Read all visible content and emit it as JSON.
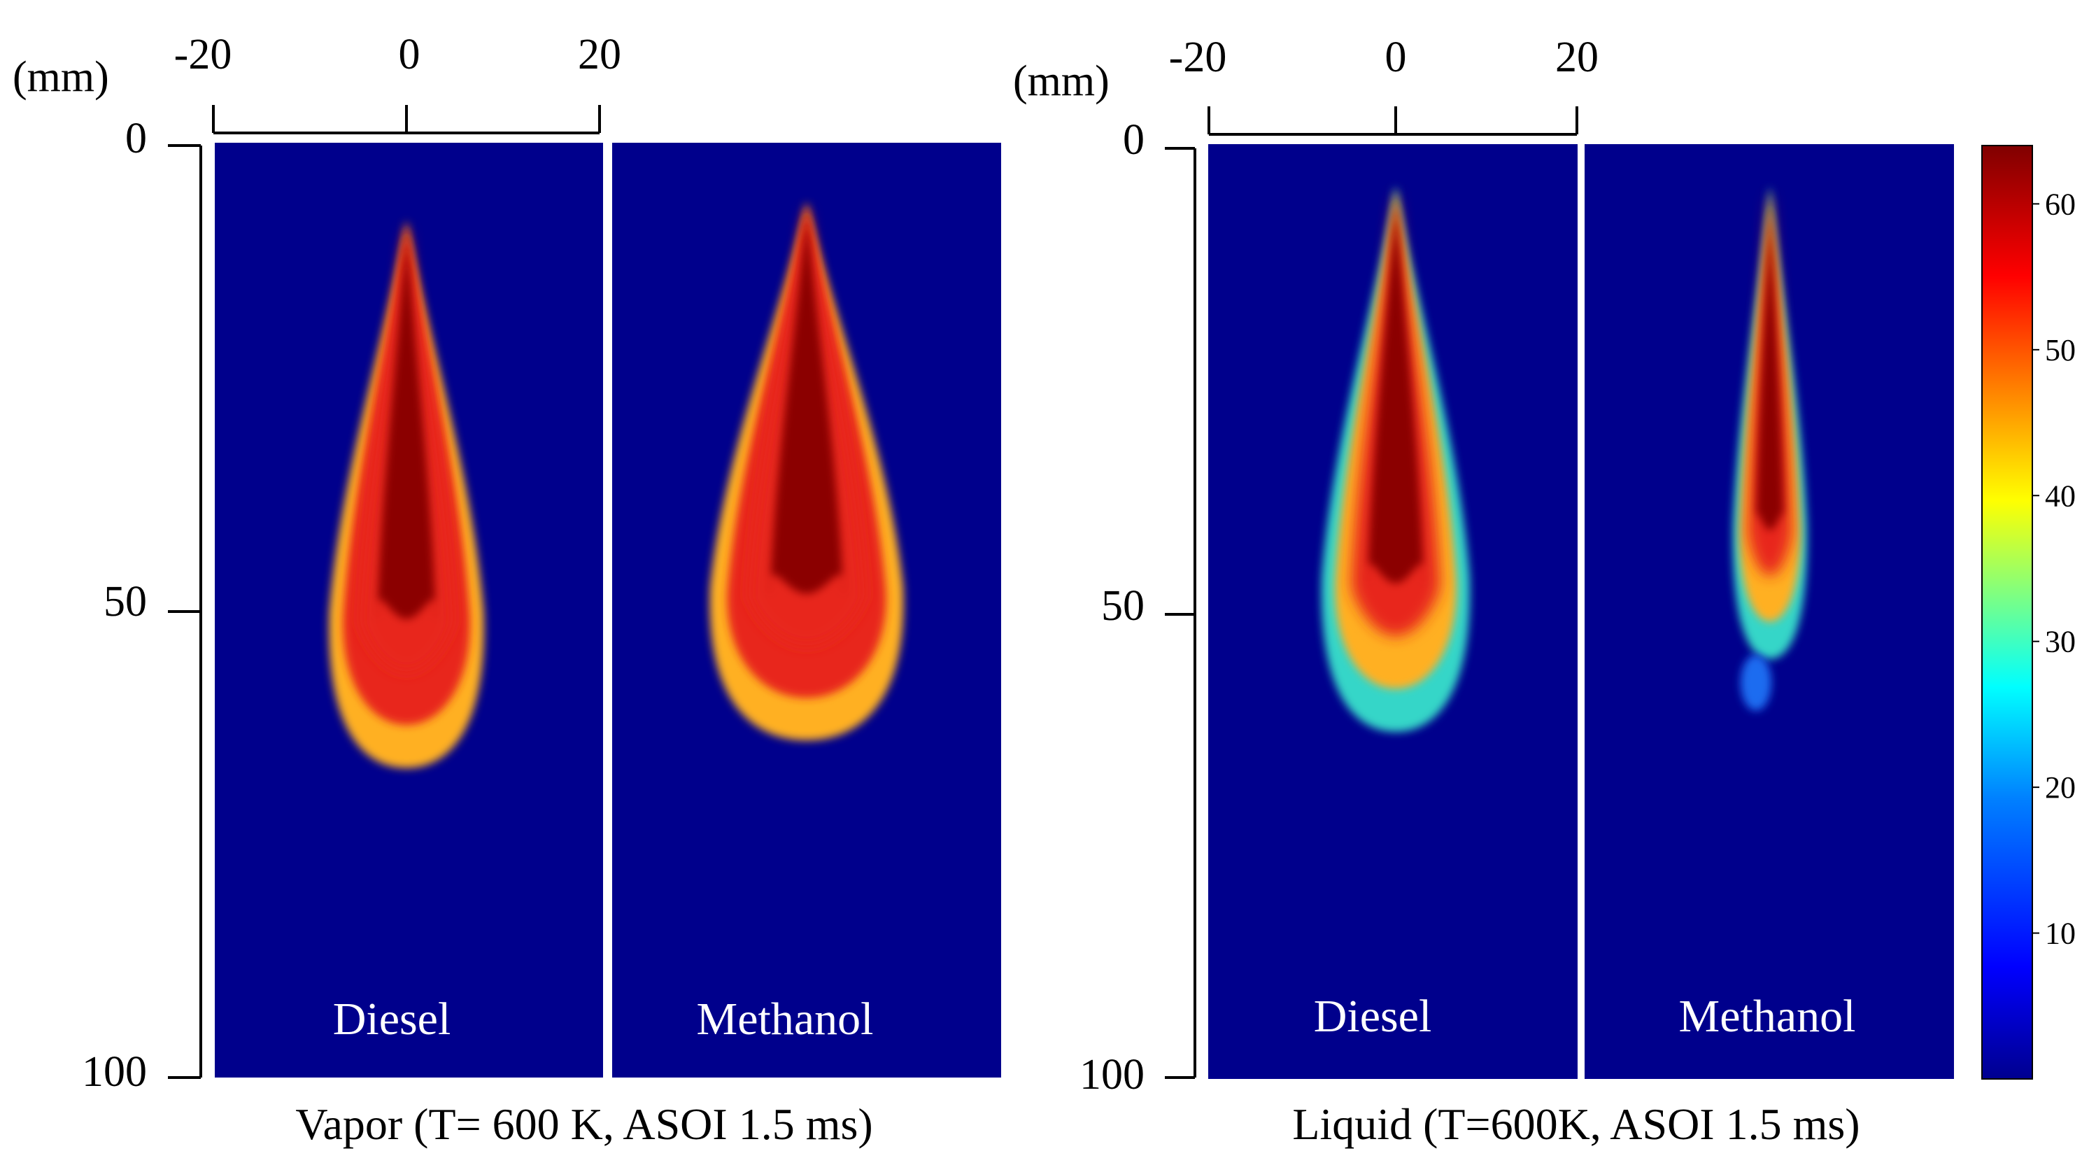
{
  "chart_data": [
    {
      "type": "heatmap",
      "title": "Vapor (T= 600 K, ASOI 1.5 ms)",
      "unit_label": "(mm)",
      "x_ticks": [
        "-20",
        "0",
        "20"
      ],
      "x_range": [
        -20,
        20
      ],
      "y_ticks": [
        "0",
        "50",
        "100"
      ],
      "y_range": [
        0,
        100
      ],
      "panels": [
        {
          "label": "Diesel",
          "tip_mm": 8,
          "penetration_mm": 68,
          "max_half_width_mm": 8
        },
        {
          "label": "Methanol",
          "tip_mm": 6,
          "penetration_mm": 65,
          "max_half_width_mm": 10
        }
      ]
    },
    {
      "type": "heatmap",
      "title": "Liquid (T=600K, ASOI 1.5 ms)",
      "unit_label": "(mm)",
      "x_ticks": [
        "-20",
        "0",
        "20"
      ],
      "x_range": [
        -20,
        20
      ],
      "y_ticks": [
        "0",
        "50",
        "100"
      ],
      "y_range": [
        0,
        100
      ],
      "panels": [
        {
          "label": "Diesel",
          "tip_mm": 4,
          "penetration_mm": 64,
          "max_half_width_mm": 8
        },
        {
          "label": "Methanol",
          "tip_mm": 4,
          "penetration_mm": 56,
          "max_half_width_mm": 4
        }
      ]
    }
  ],
  "colorbar": {
    "ticks": [
      "10",
      "20",
      "30",
      "40",
      "50",
      "60"
    ],
    "tick_values": [
      10,
      20,
      30,
      40,
      50,
      60
    ],
    "range": [
      0,
      64
    ],
    "colors": [
      "#00008f",
      "#0000ff",
      "#0080ff",
      "#00ffff",
      "#80ff80",
      "#ffff00",
      "#ff8000",
      "#ff0000",
      "#800000"
    ]
  },
  "colors": {
    "background_field": "#00008c",
    "core": "#8b0000",
    "mid": "#e8281a",
    "outer": "#ffb020",
    "edge": "#34d6c8"
  }
}
